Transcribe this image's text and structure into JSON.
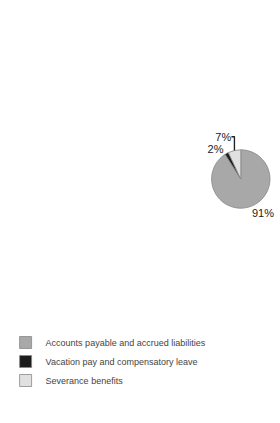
{
  "chart_data": {
    "type": "pie",
    "categories": [
      "Accounts payable and accrued liabilities",
      "Vacation pay and compensatory leave",
      "Severance benefits"
    ],
    "values": [
      91,
      2,
      7
    ],
    "value_labels": [
      "91%",
      "2%",
      "7%"
    ],
    "colors": [
      "#a8a8a8",
      "#1c1c1c",
      "#e0e0e0"
    ],
    "data_labels": true,
    "legend": "lower left"
  }
}
